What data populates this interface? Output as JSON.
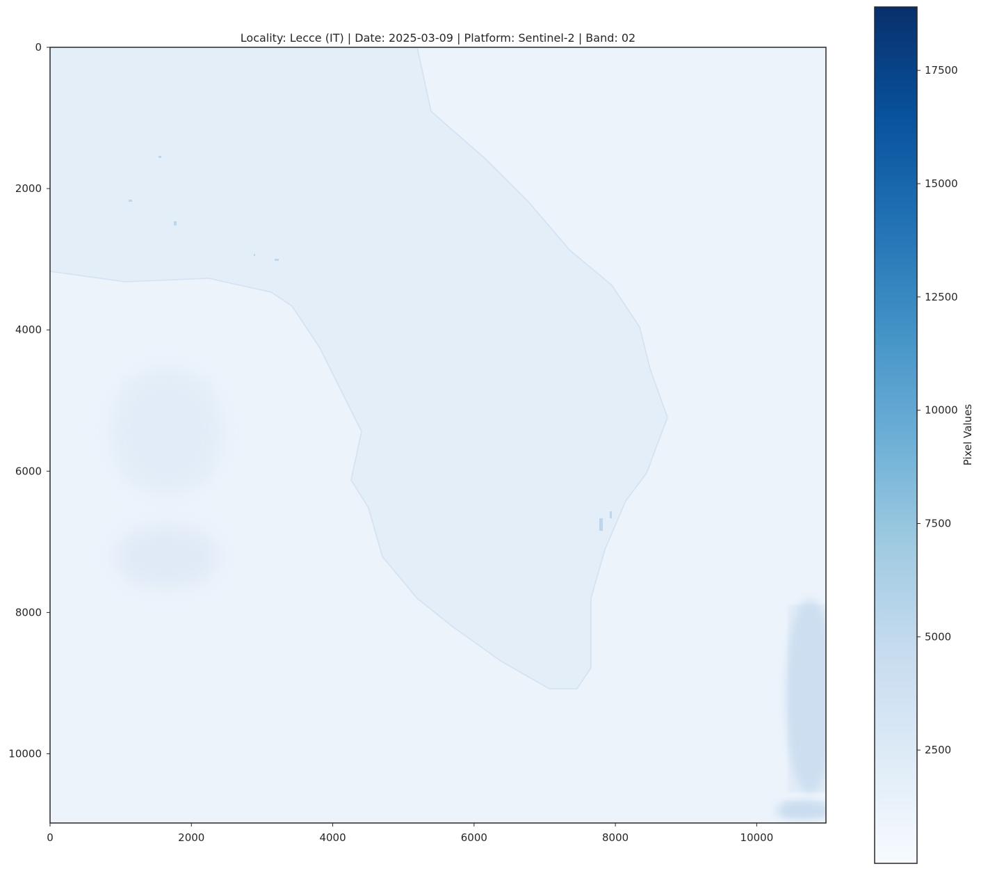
{
  "chart_data": {
    "type": "heatmap",
    "title": "Locality: Lecce (IT)  |  Date: 2025-03-09  |  Platform: Sentinel-2  |  Band: 02",
    "xlabel": "",
    "ylabel": "",
    "x_ticks": [
      0,
      2000,
      4000,
      6000,
      8000,
      10000
    ],
    "y_ticks": [
      0,
      2000,
      4000,
      6000,
      8000,
      10000
    ],
    "xlim": [
      0,
      10980
    ],
    "ylim": [
      10980,
      0
    ],
    "grid": false,
    "colormap": "Blues",
    "colorbar": {
      "label": "Pixel Values",
      "range": [
        0,
        18900
      ],
      "ticks": [
        2500,
        5000,
        7500,
        10000,
        12500,
        15000,
        17500
      ],
      "colors": [
        "#f7fbff",
        "#deebf7",
        "#c6dbef",
        "#9ecae1",
        "#6baed6",
        "#4292c6",
        "#2171b5",
        "#08519c",
        "#08306b"
      ]
    }
  }
}
